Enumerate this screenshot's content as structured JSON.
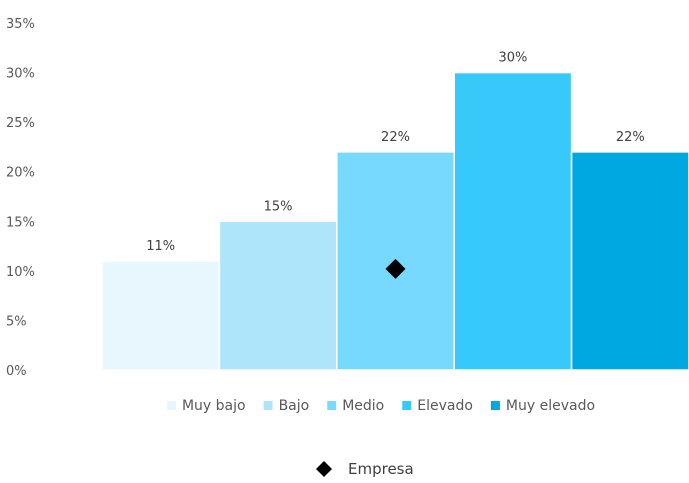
{
  "chart_data": {
    "type": "bar",
    "categories": [
      "Muy bajo",
      "Bajo",
      "Medio",
      "Elevado",
      "Muy elevado"
    ],
    "values": [
      11,
      15,
      22,
      30,
      22
    ],
    "data_labels": [
      "11%",
      "15%",
      "22%",
      "30%",
      "22%"
    ],
    "colors": [
      "#e8f6fd",
      "#aee5fb",
      "#77d9fd",
      "#38c9fb",
      "#00a8e2"
    ],
    "ylim": [
      0,
      35
    ],
    "yticks": [
      {
        "value": 0,
        "label": "0%"
      },
      {
        "value": 5,
        "label": "5%"
      },
      {
        "value": 10,
        "label": "10%"
      },
      {
        "value": 15,
        "label": "15%"
      },
      {
        "value": 20,
        "label": "20%"
      },
      {
        "value": 25,
        "label": "25%"
      },
      {
        "value": 30,
        "label": "30%"
      },
      {
        "value": 35,
        "label": "35%"
      }
    ],
    "grid": false,
    "legend_placement": "bottom",
    "marker": {
      "name": "Empresa",
      "category": "Medio",
      "value": 10.2,
      "shape": "diamond",
      "color": "#000000"
    }
  }
}
